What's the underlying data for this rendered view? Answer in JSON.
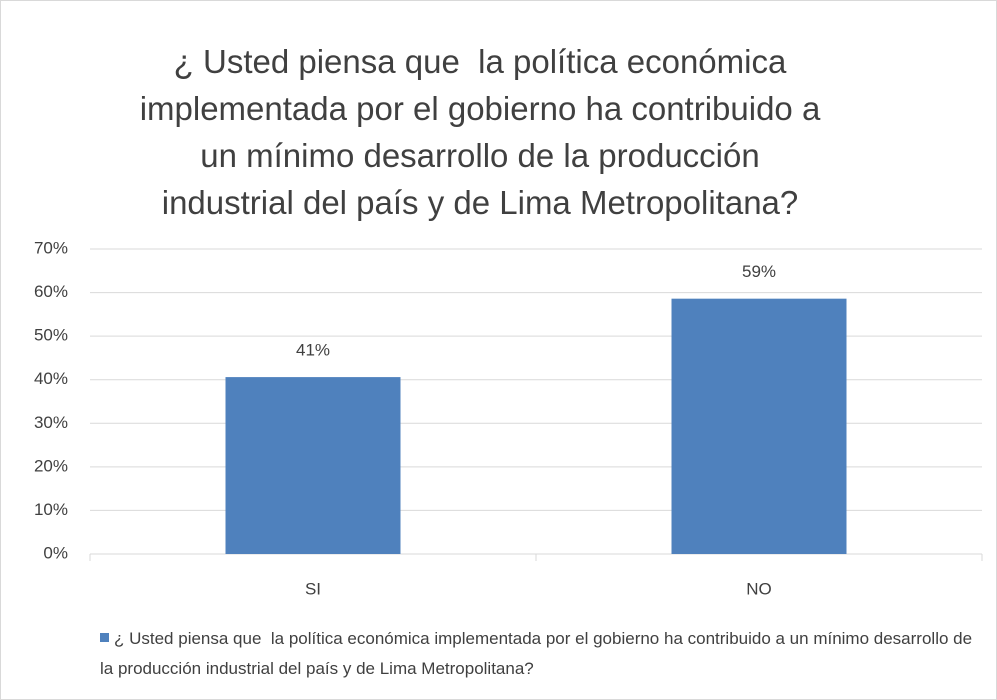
{
  "chart_data": {
    "type": "bar",
    "title": "¿ Usted piensa que  la política económica implementada por el gobierno ha contribuido a un mínimo desarrollo de la producción industrial del país y de Lima Metropolitana?",
    "categories": [
      "SI",
      "NO"
    ],
    "series": [
      {
        "name": "¿ Usted piensa que  la política económica implementada por el gobierno ha contribuido a un mínimo desarrollo de la producción industrial del país y de Lima Metropolitana?",
        "color": "#4f81bd",
        "values": [
          40.6,
          58.6
        ],
        "value_labels": [
          "41%",
          "59%"
        ]
      }
    ],
    "ylim": [
      0,
      70
    ],
    "yticks": [
      {
        "value": 0,
        "label": "0%"
      },
      {
        "value": 10,
        "label": "10%"
      },
      {
        "value": 20,
        "label": "20%"
      },
      {
        "value": 30,
        "label": "30%"
      },
      {
        "value": 40,
        "label": "40%"
      },
      {
        "value": 50,
        "label": "50%"
      },
      {
        "value": 60,
        "label": "60%"
      },
      {
        "value": 70,
        "label": "70%"
      }
    ],
    "grid": true,
    "legend": "bottom"
  }
}
